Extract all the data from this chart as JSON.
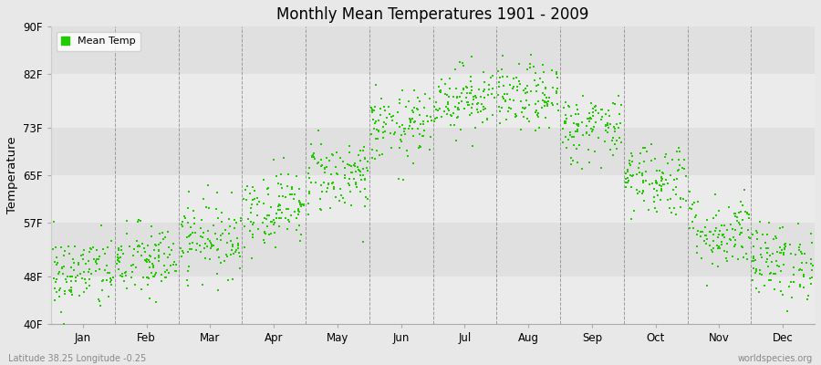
{
  "title": "Monthly Mean Temperatures 1901 - 2009",
  "ylabel": "Temperature",
  "xlabel_labels": [
    "Jan",
    "Feb",
    "Mar",
    "Apr",
    "May",
    "Jun",
    "Jul",
    "Aug",
    "Sep",
    "Oct",
    "Nov",
    "Dec"
  ],
  "ytick_labels": [
    "40F",
    "48F",
    "57F",
    "65F",
    "73F",
    "82F",
    "90F"
  ],
  "ytick_values": [
    40,
    48,
    57,
    65,
    73,
    82,
    90
  ],
  "ylim": [
    40,
    90
  ],
  "dot_color": "#22cc00",
  "background_color": "#e8e8e8",
  "plot_bg_color": "#f2f2f2",
  "band_colors": [
    "#ebebeb",
    "#e0e0e0"
  ],
  "legend_label": "Mean Temp",
  "bottom_left_text": "Latitude 38.25 Longitude -0.25",
  "bottom_right_text": "worldspecies.org",
  "monthly_mean_F": [
    48.5,
    50.5,
    54.5,
    59.5,
    65.0,
    73.0,
    78.0,
    78.0,
    73.0,
    64.5,
    55.5,
    50.5
  ],
  "monthly_std_F": [
    3.2,
    3.2,
    3.2,
    3.2,
    3.2,
    3.0,
    2.8,
    2.8,
    3.0,
    3.2,
    3.2,
    3.2
  ],
  "n_years": 109,
  "seed": 42
}
